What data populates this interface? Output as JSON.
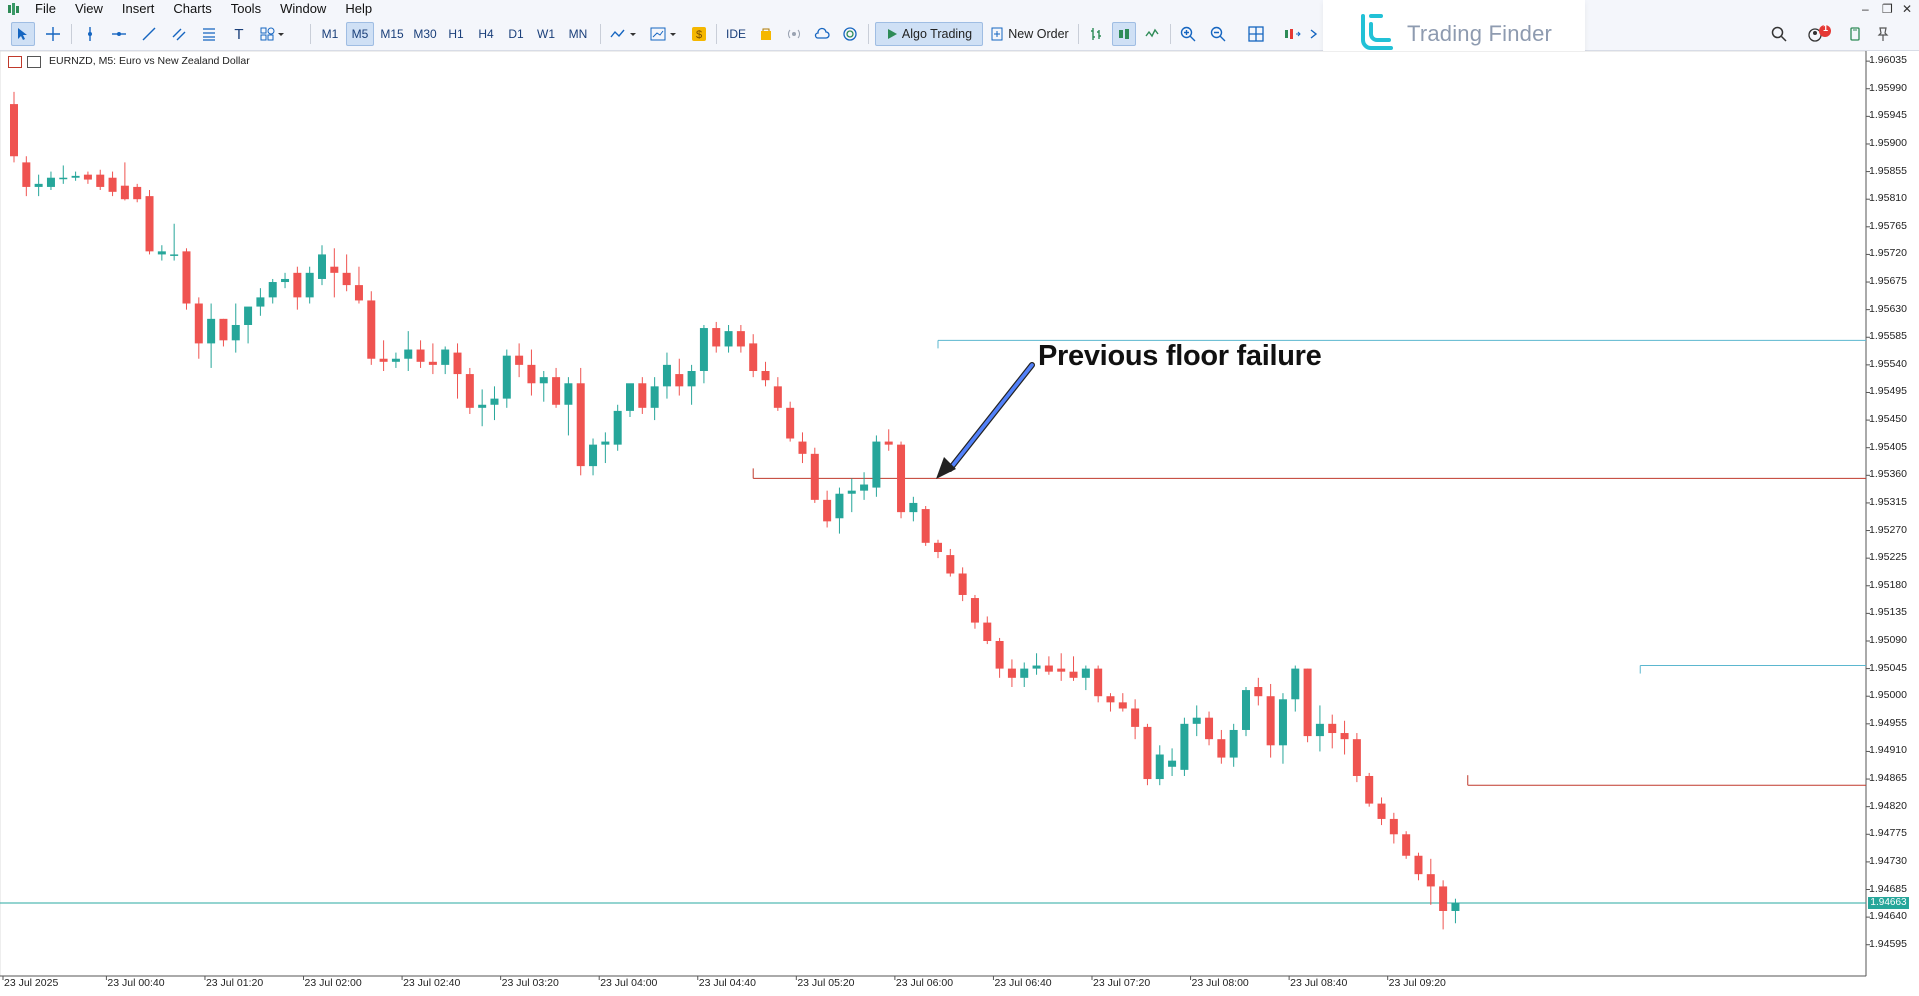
{
  "menu": [
    "File",
    "View",
    "Insert",
    "Charts",
    "Tools",
    "Window",
    "Help"
  ],
  "timeframes": [
    "M1",
    "M5",
    "M15",
    "M30",
    "H1",
    "H4",
    "D1",
    "W1",
    "MN"
  ],
  "active_timeframe": "M5",
  "toolbar": {
    "ide_label": "IDE",
    "algo_label": "Algo Trading",
    "order_label": "New Order",
    "notif_count": "1"
  },
  "logo": {
    "text": "Trading Finder"
  },
  "chart": {
    "title": "EURNZD, M5:  Euro vs New Zealand Dollar",
    "annotation": "Previous floor failure",
    "current_price": "1.94663",
    "price_axis": [
      "1.96035",
      "1.95990",
      "1.95945",
      "1.95900",
      "1.95855",
      "1.95810",
      "1.95765",
      "1.95720",
      "1.95675",
      "1.95630",
      "1.95585",
      "1.95540",
      "1.95495",
      "1.95450",
      "1.95405",
      "1.95360",
      "1.95315",
      "1.95270",
      "1.95225",
      "1.95180",
      "1.95135",
      "1.95090",
      "1.95045",
      "1.95000",
      "1.94955",
      "1.94910",
      "1.94865",
      "1.94820",
      "1.94775",
      "1.94730",
      "1.94685",
      "1.94640",
      "1.94595"
    ],
    "time_axis": [
      "23 Jul 2025",
      "23 Jul 00:40",
      "23 Jul 01:20",
      "23 Jul 02:00",
      "23 Jul 02:40",
      "23 Jul 03:20",
      "23 Jul 04:00",
      "23 Jul 04:40",
      "23 Jul 05:20",
      "23 Jul 06:00",
      "23 Jul 06:40",
      "23 Jul 07:20",
      "23 Jul 08:00",
      "23 Jul 08:40",
      "23 Jul 09:20"
    ],
    "colors": {
      "bull": "#26a69a",
      "bear": "#ef5350",
      "resistance": "#5bb7cf",
      "support": "#c0392b"
    }
  },
  "chart_data": {
    "type": "candlestick",
    "symbol": "EURNZD",
    "timeframe": "M5",
    "ylim": [
      1.94575,
      1.96045
    ],
    "candles": [
      {
        "o": 1.95965,
        "h": 1.95985,
        "l": 1.9587,
        "c": 1.9588
      },
      {
        "o": 1.9587,
        "h": 1.9588,
        "l": 1.95815,
        "c": 1.9583
      },
      {
        "o": 1.9583,
        "h": 1.9585,
        "l": 1.95815,
        "c": 1.95835
      },
      {
        "o": 1.9583,
        "h": 1.95855,
        "l": 1.95825,
        "c": 1.95845
      },
      {
        "o": 1.95845,
        "h": 1.95865,
        "l": 1.95835,
        "c": 1.95845
      },
      {
        "o": 1.95845,
        "h": 1.95855,
        "l": 1.9584,
        "c": 1.95848
      },
      {
        "o": 1.9585,
        "h": 1.95855,
        "l": 1.95835,
        "c": 1.95842
      },
      {
        "o": 1.9585,
        "h": 1.95858,
        "l": 1.95825,
        "c": 1.9583
      },
      {
        "o": 1.95845,
        "h": 1.95855,
        "l": 1.95815,
        "c": 1.95822
      },
      {
        "o": 1.95832,
        "h": 1.9587,
        "l": 1.95808,
        "c": 1.9581
      },
      {
        "o": 1.9583,
        "h": 1.95835,
        "l": 1.95805,
        "c": 1.9581
      },
      {
        "o": 1.95815,
        "h": 1.95825,
        "l": 1.9572,
        "c": 1.95725
      },
      {
        "o": 1.9572,
        "h": 1.95735,
        "l": 1.9571,
        "c": 1.95725
      },
      {
        "o": 1.9572,
        "h": 1.9577,
        "l": 1.9571,
        "c": 1.9572
      },
      {
        "o": 1.95725,
        "h": 1.9573,
        "l": 1.9563,
        "c": 1.9564
      },
      {
        "o": 1.9564,
        "h": 1.9565,
        "l": 1.9555,
        "c": 1.95575
      },
      {
        "o": 1.95575,
        "h": 1.9564,
        "l": 1.95535,
        "c": 1.95615
      },
      {
        "o": 1.95615,
        "h": 1.95615,
        "l": 1.9557,
        "c": 1.9558
      },
      {
        "o": 1.9558,
        "h": 1.9564,
        "l": 1.9556,
        "c": 1.95605
      },
      {
        "o": 1.95605,
        "h": 1.9563,
        "l": 1.95575,
        "c": 1.95635
      },
      {
        "o": 1.95635,
        "h": 1.95665,
        "l": 1.9562,
        "c": 1.9565
      },
      {
        "o": 1.9565,
        "h": 1.9568,
        "l": 1.9564,
        "c": 1.95675
      },
      {
        "o": 1.95675,
        "h": 1.9569,
        "l": 1.95665,
        "c": 1.9568
      },
      {
        "o": 1.9569,
        "h": 1.957,
        "l": 1.9563,
        "c": 1.9565
      },
      {
        "o": 1.9565,
        "h": 1.957,
        "l": 1.9564,
        "c": 1.9569
      },
      {
        "o": 1.9568,
        "h": 1.95735,
        "l": 1.9567,
        "c": 1.9572
      },
      {
        "o": 1.957,
        "h": 1.9573,
        "l": 1.9565,
        "c": 1.9569
      },
      {
        "o": 1.9569,
        "h": 1.9572,
        "l": 1.9566,
        "c": 1.9567
      },
      {
        "o": 1.9567,
        "h": 1.957,
        "l": 1.9564,
        "c": 1.95645
      },
      {
        "o": 1.95645,
        "h": 1.9566,
        "l": 1.9554,
        "c": 1.9555
      },
      {
        "o": 1.9555,
        "h": 1.9558,
        "l": 1.9553,
        "c": 1.95545
      },
      {
        "o": 1.95545,
        "h": 1.9556,
        "l": 1.95535,
        "c": 1.9555
      },
      {
        "o": 1.9555,
        "h": 1.95595,
        "l": 1.9553,
        "c": 1.95565
      },
      {
        "o": 1.95565,
        "h": 1.9558,
        "l": 1.95535,
        "c": 1.95545
      },
      {
        "o": 1.95545,
        "h": 1.95575,
        "l": 1.95525,
        "c": 1.9554
      },
      {
        "o": 1.9554,
        "h": 1.9557,
        "l": 1.95525,
        "c": 1.95565
      },
      {
        "o": 1.9556,
        "h": 1.95575,
        "l": 1.95485,
        "c": 1.95525
      },
      {
        "o": 1.95525,
        "h": 1.95535,
        "l": 1.9546,
        "c": 1.9547
      },
      {
        "o": 1.9547,
        "h": 1.955,
        "l": 1.9544,
        "c": 1.95475
      },
      {
        "o": 1.95475,
        "h": 1.95505,
        "l": 1.9545,
        "c": 1.95485
      },
      {
        "o": 1.95485,
        "h": 1.95565,
        "l": 1.9547,
        "c": 1.95555
      },
      {
        "o": 1.95555,
        "h": 1.95575,
        "l": 1.9552,
        "c": 1.9554
      },
      {
        "o": 1.9554,
        "h": 1.95565,
        "l": 1.9549,
        "c": 1.9551
      },
      {
        "o": 1.9551,
        "h": 1.9553,
        "l": 1.9548,
        "c": 1.9552
      },
      {
        "o": 1.9552,
        "h": 1.95535,
        "l": 1.9547,
        "c": 1.95475
      },
      {
        "o": 1.95475,
        "h": 1.9552,
        "l": 1.95425,
        "c": 1.9551
      },
      {
        "o": 1.9551,
        "h": 1.95535,
        "l": 1.9536,
        "c": 1.95375
      },
      {
        "o": 1.95375,
        "h": 1.9542,
        "l": 1.9536,
        "c": 1.9541
      },
      {
        "o": 1.9541,
        "h": 1.9543,
        "l": 1.9538,
        "c": 1.95415
      },
      {
        "o": 1.9541,
        "h": 1.95475,
        "l": 1.954,
        "c": 1.95465
      },
      {
        "o": 1.95465,
        "h": 1.955,
        "l": 1.95455,
        "c": 1.9551
      },
      {
        "o": 1.9551,
        "h": 1.9552,
        "l": 1.9546,
        "c": 1.9547
      },
      {
        "o": 1.9547,
        "h": 1.9552,
        "l": 1.9545,
        "c": 1.95505
      },
      {
        "o": 1.95505,
        "h": 1.9556,
        "l": 1.95485,
        "c": 1.9554
      },
      {
        "o": 1.95525,
        "h": 1.9555,
        "l": 1.9549,
        "c": 1.95505
      },
      {
        "o": 1.95505,
        "h": 1.9554,
        "l": 1.95475,
        "c": 1.9553
      },
      {
        "o": 1.9553,
        "h": 1.95605,
        "l": 1.9551,
        "c": 1.956
      },
      {
        "o": 1.956,
        "h": 1.9561,
        "l": 1.9556,
        "c": 1.9557
      },
      {
        "o": 1.9557,
        "h": 1.95605,
        "l": 1.9556,
        "c": 1.95595
      },
      {
        "o": 1.95595,
        "h": 1.95605,
        "l": 1.9556,
        "c": 1.9557
      },
      {
        "o": 1.95575,
        "h": 1.9559,
        "l": 1.9552,
        "c": 1.9553
      },
      {
        "o": 1.9553,
        "h": 1.95545,
        "l": 1.95505,
        "c": 1.95515
      },
      {
        "o": 1.95505,
        "h": 1.9552,
        "l": 1.95465,
        "c": 1.9547
      },
      {
        "o": 1.9547,
        "h": 1.9548,
        "l": 1.95415,
        "c": 1.9542
      },
      {
        "o": 1.95415,
        "h": 1.9543,
        "l": 1.9538,
        "c": 1.95395
      },
      {
        "o": 1.95395,
        "h": 1.95405,
        "l": 1.95315,
        "c": 1.9532
      },
      {
        "o": 1.9532,
        "h": 1.95335,
        "l": 1.95275,
        "c": 1.95285
      },
      {
        "o": 1.9529,
        "h": 1.9534,
        "l": 1.95265,
        "c": 1.9533
      },
      {
        "o": 1.9533,
        "h": 1.95355,
        "l": 1.953,
        "c": 1.95335
      },
      {
        "o": 1.95335,
        "h": 1.95365,
        "l": 1.9532,
        "c": 1.95345
      },
      {
        "o": 1.9534,
        "h": 1.95425,
        "l": 1.95325,
        "c": 1.95415
      },
      {
        "o": 1.95415,
        "h": 1.95435,
        "l": 1.954,
        "c": 1.9541
      },
      {
        "o": 1.9541,
        "h": 1.95415,
        "l": 1.9529,
        "c": 1.953
      },
      {
        "o": 1.953,
        "h": 1.95325,
        "l": 1.95285,
        "c": 1.95315
      },
      {
        "o": 1.95305,
        "h": 1.9531,
        "l": 1.95245,
        "c": 1.9525
      },
      {
        "o": 1.9525,
        "h": 1.95255,
        "l": 1.95225,
        "c": 1.95235
      },
      {
        "o": 1.9523,
        "h": 1.9524,
        "l": 1.95195,
        "c": 1.952
      },
      {
        "o": 1.952,
        "h": 1.9521,
        "l": 1.95155,
        "c": 1.95165
      },
      {
        "o": 1.9516,
        "h": 1.95165,
        "l": 1.9511,
        "c": 1.9512
      },
      {
        "o": 1.9512,
        "h": 1.9513,
        "l": 1.95085,
        "c": 1.9509
      },
      {
        "o": 1.9509,
        "h": 1.95095,
        "l": 1.9503,
        "c": 1.95045
      },
      {
        "o": 1.95045,
        "h": 1.9506,
        "l": 1.95015,
        "c": 1.9503
      },
      {
        "o": 1.9503,
        "h": 1.95055,
        "l": 1.95015,
        "c": 1.95045
      },
      {
        "o": 1.95045,
        "h": 1.9507,
        "l": 1.95035,
        "c": 1.9505
      },
      {
        "o": 1.9505,
        "h": 1.95065,
        "l": 1.95035,
        "c": 1.9504
      },
      {
        "o": 1.95045,
        "h": 1.9507,
        "l": 1.95025,
        "c": 1.9504
      },
      {
        "o": 1.9504,
        "h": 1.95065,
        "l": 1.95025,
        "c": 1.9503
      },
      {
        "o": 1.9503,
        "h": 1.9505,
        "l": 1.9501,
        "c": 1.95045
      },
      {
        "o": 1.95045,
        "h": 1.9505,
        "l": 1.9499,
        "c": 1.95
      },
      {
        "o": 1.95,
        "h": 1.95005,
        "l": 1.94975,
        "c": 1.9499
      },
      {
        "o": 1.9499,
        "h": 1.95005,
        "l": 1.94975,
        "c": 1.9498
      },
      {
        "o": 1.9498,
        "h": 1.94995,
        "l": 1.9493,
        "c": 1.9495
      },
      {
        "o": 1.9495,
        "h": 1.94955,
        "l": 1.94855,
        "c": 1.94865
      },
      {
        "o": 1.94865,
        "h": 1.9492,
        "l": 1.94855,
        "c": 1.94905
      },
      {
        "o": 1.94885,
        "h": 1.94915,
        "l": 1.9487,
        "c": 1.94895
      },
      {
        "o": 1.9488,
        "h": 1.94965,
        "l": 1.9487,
        "c": 1.94955
      },
      {
        "o": 1.94955,
        "h": 1.94985,
        "l": 1.94935,
        "c": 1.94965
      },
      {
        "o": 1.94965,
        "h": 1.94975,
        "l": 1.9492,
        "c": 1.9493
      },
      {
        "o": 1.9493,
        "h": 1.94945,
        "l": 1.9489,
        "c": 1.949
      },
      {
        "o": 1.949,
        "h": 1.94955,
        "l": 1.94885,
        "c": 1.94945
      },
      {
        "o": 1.94945,
        "h": 1.95015,
        "l": 1.94935,
        "c": 1.9501
      },
      {
        "o": 1.95015,
        "h": 1.9503,
        "l": 1.94985,
        "c": 1.95
      },
      {
        "o": 1.95,
        "h": 1.9502,
        "l": 1.949,
        "c": 1.9492
      },
      {
        "o": 1.9492,
        "h": 1.95005,
        "l": 1.9489,
        "c": 1.94995
      },
      {
        "o": 1.94995,
        "h": 1.9505,
        "l": 1.94975,
        "c": 1.95045
      },
      {
        "o": 1.95045,
        "h": 1.95045,
        "l": 1.94925,
        "c": 1.94935
      },
      {
        "o": 1.94935,
        "h": 1.94985,
        "l": 1.9491,
        "c": 1.94955
      },
      {
        "o": 1.94955,
        "h": 1.9497,
        "l": 1.94915,
        "c": 1.9494
      },
      {
        "o": 1.9494,
        "h": 1.9496,
        "l": 1.94905,
        "c": 1.9493
      },
      {
        "o": 1.9493,
        "h": 1.9494,
        "l": 1.9486,
        "c": 1.9487
      },
      {
        "o": 1.9487,
        "h": 1.94875,
        "l": 1.9482,
        "c": 1.94825
      },
      {
        "o": 1.94825,
        "h": 1.94835,
        "l": 1.9479,
        "c": 1.948
      },
      {
        "o": 1.948,
        "h": 1.9481,
        "l": 1.9476,
        "c": 1.94775
      },
      {
        "o": 1.94775,
        "h": 1.9478,
        "l": 1.94735,
        "c": 1.9474
      },
      {
        "o": 1.9474,
        "h": 1.94745,
        "l": 1.947,
        "c": 1.9471
      },
      {
        "o": 1.9471,
        "h": 1.94735,
        "l": 1.9466,
        "c": 1.9469
      },
      {
        "o": 1.9469,
        "h": 1.947,
        "l": 1.9462,
        "c": 1.9465
      },
      {
        "o": 1.9465,
        "h": 1.9467,
        "l": 1.9463,
        "c": 1.94663
      }
    ],
    "levels": [
      {
        "price": 1.9558,
        "type": "resistance",
        "from_index": 75
      },
      {
        "price": 1.95355,
        "type": "support",
        "from_index": 60
      },
      {
        "price": 1.9505,
        "type": "resistance",
        "from_index": 132
      },
      {
        "price": 1.94855,
        "type": "support",
        "from_index": 118
      },
      {
        "price": 1.94663,
        "type": "bid",
        "from_index": 0
      }
    ]
  }
}
